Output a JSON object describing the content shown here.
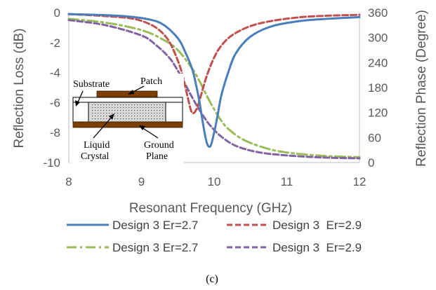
{
  "chart_data": {
    "type": "line",
    "xlabel": "Resonant Frequency (GHz)",
    "ylabel_left": "Reflection Loss (dB)",
    "ylabel_right": "Reflection Phase (Degree)",
    "xlim": [
      8,
      12
    ],
    "ylim_left": [
      -10,
      0
    ],
    "ylim_right": [
      0,
      360
    ],
    "x_ticks": [
      8,
      9,
      10,
      11,
      12
    ],
    "y_ticks_left": [
      0,
      -2,
      -4,
      -6,
      -8,
      -10
    ],
    "y_ticks_right": [
      360,
      300,
      240,
      180,
      120,
      60,
      0
    ],
    "grid": false,
    "legend_position": "bottom",
    "colors": {
      "blue": "#4a7ebb",
      "red": "#c0504d",
      "green": "#9bbb59",
      "purple": "#8064a2",
      "brown": "#7b3f00",
      "tick_text": "#595959",
      "axis_line": "#bfbfbf"
    },
    "series": [
      {
        "name": "Design 3 Er=2.7",
        "axis": "left",
        "color": "#4a7ebb",
        "dash": "solid",
        "x": [
          8.0,
          8.4,
          8.8,
          9.1,
          9.3,
          9.5,
          9.6,
          9.7,
          9.75,
          9.8,
          9.85,
          9.9,
          9.95,
          10.0,
          10.05,
          10.1,
          10.2,
          10.3,
          10.5,
          10.8,
          11.2,
          11.6,
          12.0
        ],
        "y": [
          -0.1,
          -0.15,
          -0.25,
          -0.45,
          -0.8,
          -1.7,
          -2.6,
          -3.8,
          -4.8,
          -6.0,
          -7.5,
          -8.7,
          -8.9,
          -8.0,
          -6.8,
          -5.5,
          -3.9,
          -2.7,
          -1.6,
          -0.9,
          -0.55,
          -0.4,
          -0.3
        ]
      },
      {
        "name": "Design 3  Er=2.9",
        "axis": "left",
        "color": "#c0504d",
        "dash": "dashed",
        "x": [
          8.0,
          8.4,
          8.8,
          9.0,
          9.2,
          9.35,
          9.45,
          9.55,
          9.62,
          9.68,
          9.72,
          9.77,
          9.82,
          9.9,
          10.0,
          10.1,
          10.25,
          10.5,
          10.8,
          11.2,
          11.6,
          12.0
        ],
        "y": [
          -0.1,
          -0.2,
          -0.35,
          -0.55,
          -1.0,
          -1.7,
          -2.6,
          -3.9,
          -5.3,
          -6.5,
          -6.7,
          -6.3,
          -5.5,
          -4.2,
          -3.0,
          -2.2,
          -1.5,
          -0.9,
          -0.55,
          -0.3,
          -0.2,
          -0.15
        ]
      },
      {
        "name": "Design 3 Er=2.7",
        "axis": "right",
        "color": "#9bbb59",
        "dash": "dashdot",
        "x": [
          8.0,
          8.5,
          9.0,
          9.3,
          9.5,
          9.7,
          9.8,
          9.9,
          10.0,
          10.1,
          10.2,
          10.4,
          10.7,
          11.0,
          11.5,
          12.0
        ],
        "y": [
          345,
          336,
          318,
          295,
          270,
          225,
          195,
          160,
          128,
          100,
          80,
          55,
          35,
          24,
          16,
          13
        ]
      },
      {
        "name": "Design 3  Er=2.9",
        "axis": "right",
        "color": "#8064a2",
        "dash": "dashed",
        "x": [
          8.0,
          8.5,
          9.0,
          9.2,
          9.4,
          9.55,
          9.65,
          9.75,
          9.85,
          9.95,
          10.1,
          10.3,
          10.6,
          11.0,
          11.5,
          12.0
        ],
        "y": [
          342,
          330,
          305,
          282,
          248,
          205,
          172,
          140,
          112,
          88,
          62,
          40,
          25,
          17,
          12,
          10
        ]
      }
    ],
    "inset": {
      "labels": {
        "patch": "Patch",
        "substrate": "Substrate",
        "liquid_crystal_1": "Liquid",
        "liquid_crystal_2": "Crystal",
        "ground_1": "Ground",
        "ground_2": "Plane"
      }
    },
    "caption": "(c)"
  }
}
